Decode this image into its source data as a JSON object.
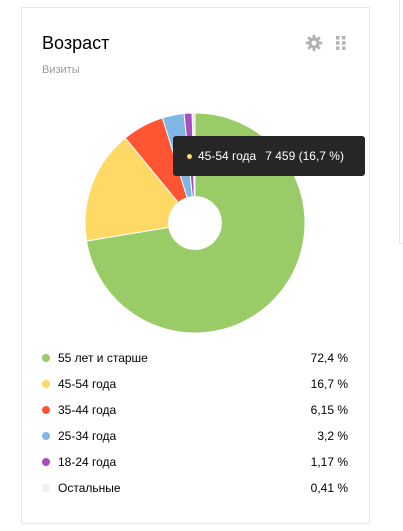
{
  "widget": {
    "title": "Возраст",
    "subtitle": "Визиты",
    "settings_icon": "gear-icon",
    "drag_icon": "drag-handle-icon"
  },
  "tooltip": {
    "label": "45-54 года",
    "value": "7 459 (16,7 %)",
    "color": "#ffd966"
  },
  "chart_data": {
    "type": "pie",
    "inner_radius_ratio": 0.24,
    "start_angle_deg": 0,
    "direction": "clockwise",
    "slices": [
      {
        "label": "55 лет и старше",
        "value": 72.4,
        "color": "#99cc66"
      },
      {
        "label": "45-54 года",
        "value": 16.7,
        "color": "#ffd966"
      },
      {
        "label": "35-44 года",
        "value": 6.15,
        "color": "#ff5533"
      },
      {
        "label": "25-34 года",
        "value": 3.2,
        "color": "#7fb6e6"
      },
      {
        "label": "18-24 года",
        "value": 1.17,
        "color": "#a64dbf"
      },
      {
        "label": "Остальные",
        "value": 0.41,
        "color": "#e6e6e6"
      }
    ]
  },
  "legend": {
    "items": [
      {
        "label": "55 лет и старше",
        "value": "72,4 %",
        "color": "#99cc66"
      },
      {
        "label": "45-54 года",
        "value": "16,7 %",
        "color": "#ffd966"
      },
      {
        "label": "35-44 года",
        "value": "6,15 %",
        "color": "#ff5533"
      },
      {
        "label": "25-34 года",
        "value": "3,2 %",
        "color": "#7fb6e6"
      },
      {
        "label": "18-24 года",
        "value": "1,17 %",
        "color": "#a64dbf"
      },
      {
        "label": "Остальные",
        "value": "0,41 %",
        "color": "#eeeeee"
      }
    ]
  }
}
